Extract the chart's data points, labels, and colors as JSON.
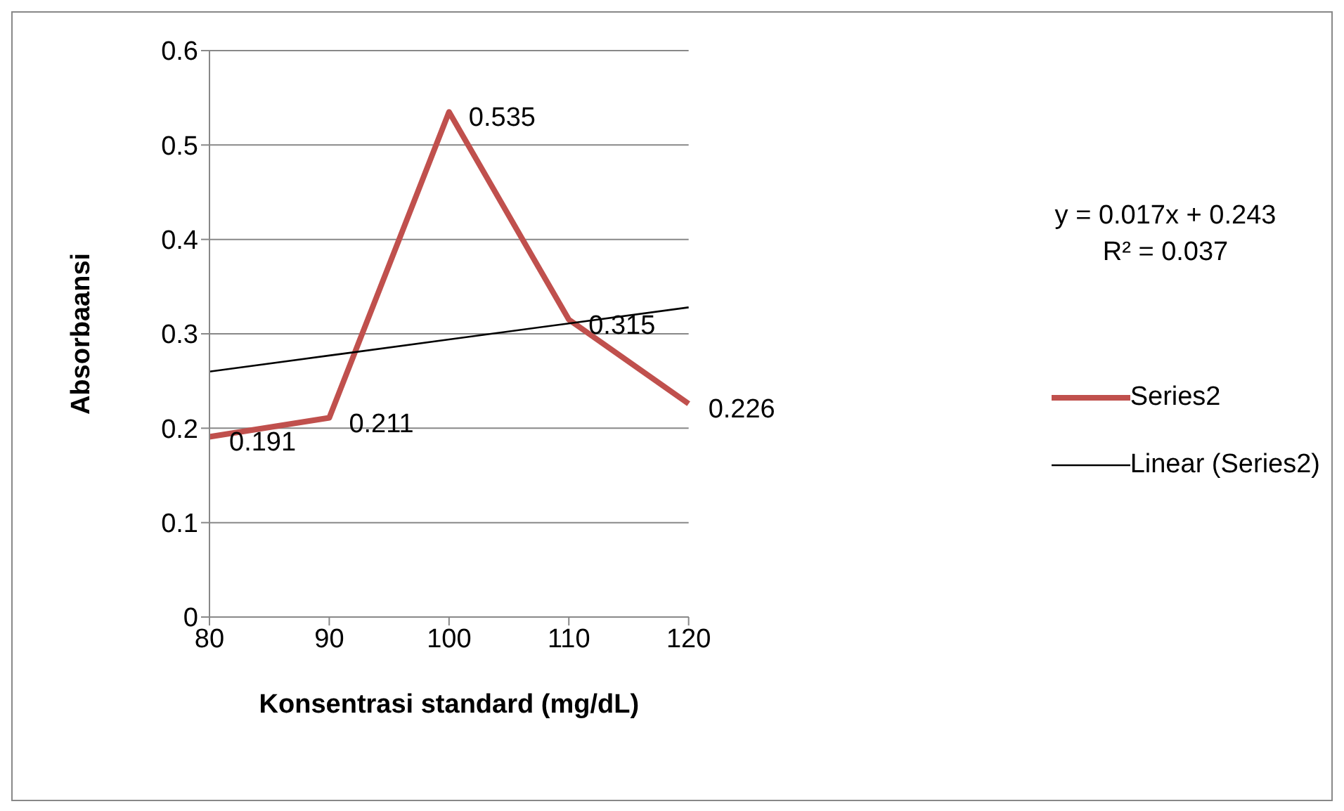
{
  "chart_data": {
    "type": "line",
    "xlabel": "Konsentrasi standard (mg/dL)",
    "ylabel": "Absorbaansi",
    "categories": [
      "80",
      "90",
      "100",
      "110",
      "120"
    ],
    "series": [
      {
        "name": "Series2",
        "color": "#c0504d",
        "values": [
          0.191,
          0.211,
          0.535,
          0.315,
          0.226
        ],
        "value_labels": [
          "0.191",
          "0.211",
          "0.535",
          "0.315",
          "0.226"
        ]
      },
      {
        "name": "Linear (Series2)",
        "color": "#000000",
        "values": [
          0.26,
          0.277,
          0.294,
          0.311,
          0.328
        ]
      }
    ],
    "ylim": [
      0,
      0.6
    ],
    "yticks": [
      0,
      0.1,
      0.2,
      0.3,
      0.4,
      0.5,
      0.6
    ],
    "grid": "y",
    "legend": "right",
    "marker": "none",
    "line_style": "solid",
    "annotations": [
      "y = 0.017x + 0.243",
      "R² = 0.037"
    ]
  }
}
